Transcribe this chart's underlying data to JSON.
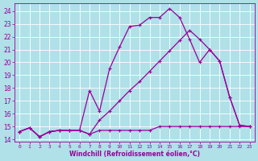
{
  "background_color": "#b0e0e8",
  "grid_color": "#c8e8f0",
  "line_color": "#990099",
  "xlabel": "Windchill (Refroidissement éolien,°C)",
  "xlim": [
    -0.5,
    23.5
  ],
  "ylim": [
    13.8,
    24.6
  ],
  "yticks": [
    14,
    15,
    16,
    17,
    18,
    19,
    20,
    21,
    22,
    23,
    24
  ],
  "xticks": [
    0,
    1,
    2,
    3,
    4,
    5,
    6,
    7,
    8,
    9,
    10,
    11,
    12,
    13,
    14,
    15,
    16,
    17,
    18,
    19,
    20,
    21,
    22,
    23
  ],
  "line1_x": [
    0,
    1,
    2,
    3,
    4,
    5,
    6,
    7,
    8,
    9,
    10,
    11,
    12,
    13,
    14,
    15,
    16,
    17,
    18,
    19,
    20,
    21,
    22,
    23
  ],
  "line1_y": [
    14.6,
    14.9,
    14.2,
    14.6,
    14.7,
    14.7,
    14.7,
    14.4,
    14.7,
    14.7,
    14.7,
    14.7,
    14.7,
    14.7,
    15.0,
    15.0,
    15.0,
    15.0,
    15.0,
    15.0,
    15.0,
    15.0,
    15.0,
    15.0
  ],
  "line2_x": [
    0,
    1,
    2,
    3,
    4,
    5,
    6,
    7,
    8,
    9,
    10,
    11,
    12,
    13,
    14,
    15,
    16,
    17,
    18,
    19,
    20,
    21,
    22,
    23
  ],
  "line2_y": [
    14.6,
    14.9,
    14.2,
    14.6,
    14.7,
    14.7,
    14.7,
    17.8,
    16.2,
    19.5,
    21.2,
    22.8,
    22.9,
    23.5,
    23.5,
    24.2,
    23.5,
    21.8,
    20.0,
    21.0,
    20.1,
    17.3,
    15.1,
    15.0
  ],
  "line3_x": [
    0,
    1,
    2,
    3,
    4,
    5,
    6,
    7,
    8,
    9,
    10,
    11,
    12,
    13,
    14,
    15,
    16,
    17,
    18,
    19,
    20,
    21,
    22,
    23
  ],
  "line3_y": [
    14.6,
    14.9,
    14.2,
    14.6,
    14.7,
    14.7,
    14.7,
    14.4,
    15.5,
    16.2,
    17.0,
    17.8,
    18.5,
    19.3,
    20.1,
    20.9,
    21.7,
    22.5,
    21.8,
    21.0,
    20.1,
    17.3,
    15.1,
    15.0
  ]
}
